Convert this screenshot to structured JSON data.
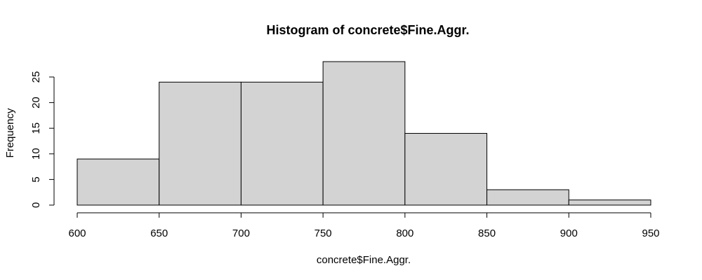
{
  "chart_data": {
    "type": "bar",
    "title": "Histogram of concrete$Fine.Aggr.",
    "xlabel": "concrete$Fine.Aggr.",
    "ylabel": "Frequency",
    "bins": [
      {
        "from": 600,
        "to": 650,
        "count": 9
      },
      {
        "from": 650,
        "to": 700,
        "count": 24
      },
      {
        "from": 700,
        "to": 750,
        "count": 24
      },
      {
        "from": 750,
        "to": 800,
        "count": 28
      },
      {
        "from": 800,
        "to": 850,
        "count": 14
      },
      {
        "from": 850,
        "to": 900,
        "count": 3
      },
      {
        "from": 900,
        "to": 950,
        "count": 1
      }
    ],
    "xticks": [
      600,
      650,
      700,
      750,
      800,
      850,
      900,
      950
    ],
    "yticks": [
      0,
      5,
      10,
      15,
      20,
      25
    ],
    "xlim": [
      600,
      950
    ],
    "ylim": [
      0,
      28
    ],
    "grid": false,
    "bar_fill": "#d3d3d3",
    "bar_stroke": "#000000"
  }
}
